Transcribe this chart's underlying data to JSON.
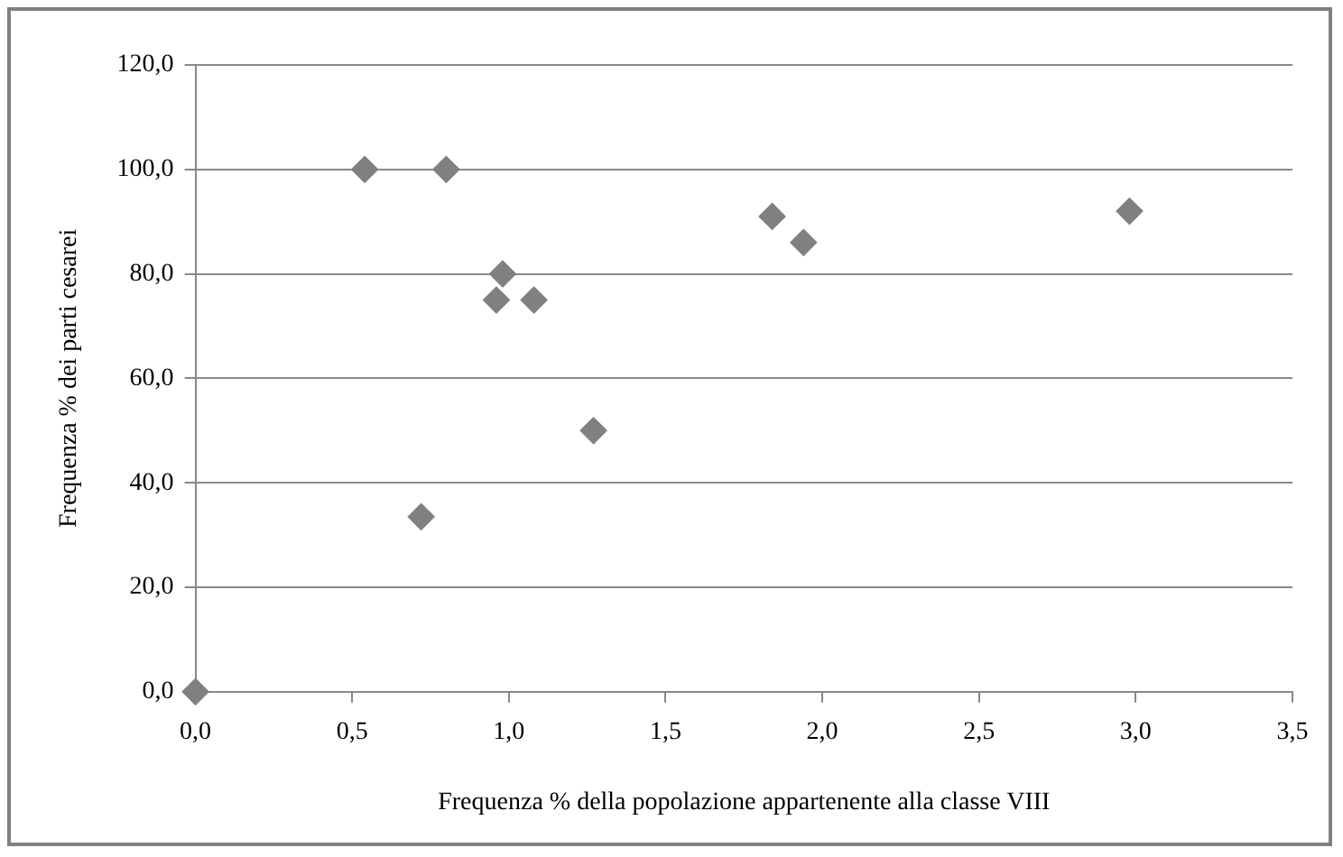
{
  "chart_data": {
    "type": "scatter",
    "xlabel": "Frequenza % della popolazione appartenente alla classe VIII",
    "ylabel": "Frequenza % dei parti cesarei",
    "x": [
      0.0,
      0.54,
      0.8,
      0.98,
      0.96,
      1.08,
      0.72,
      1.27,
      1.84,
      1.94,
      2.98
    ],
    "values": [
      0,
      100,
      100,
      80,
      75,
      75,
      33.5,
      50,
      91,
      86,
      92
    ],
    "color": "#808080",
    "marker": "diamond",
    "grid": "y",
    "legend": false,
    "xlim": [
      0,
      3.5
    ],
    "ylim": [
      0,
      120
    ],
    "xticks": [
      {
        "value": 0,
        "label": "0,0"
      },
      {
        "value": 0.5,
        "label": "0,5"
      },
      {
        "value": 1,
        "label": "1,0"
      },
      {
        "value": 1.5,
        "label": "1,5"
      },
      {
        "value": 2,
        "label": "2,0"
      },
      {
        "value": 2.5,
        "label": "2,5"
      },
      {
        "value": 3,
        "label": "3,0"
      },
      {
        "value": 3.5,
        "label": "3,5"
      }
    ],
    "yticks": [
      {
        "value": 0,
        "label": "0,0"
      },
      {
        "value": 20,
        "label": "20,0"
      },
      {
        "value": 40,
        "label": "40,0"
      },
      {
        "value": 60,
        "label": "60,0"
      },
      {
        "value": 80,
        "label": "80,0"
      },
      {
        "value": 100,
        "label": "100,0"
      },
      {
        "value": 120,
        "label": "120,0"
      }
    ]
  }
}
